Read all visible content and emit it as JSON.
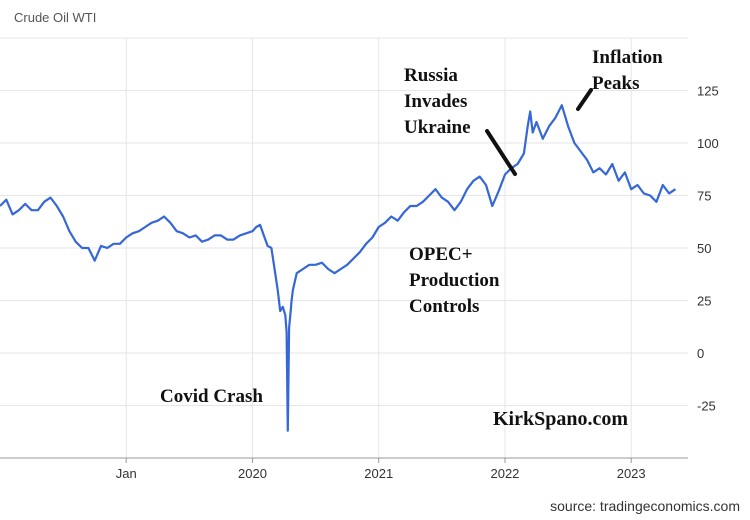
{
  "chart_data": {
    "type": "line",
    "title": "Crude Oil WTI",
    "source": "source: tradingeconomics.com",
    "watermark": "KirkSpano.com",
    "xlim": [
      2018.0,
      2023.45
    ],
    "ylim": [
      -50,
      150
    ],
    "y_ticks": [
      -25,
      0,
      25,
      50,
      75,
      100,
      125
    ],
    "y_tick_labels": [
      "-25",
      "0",
      "25",
      "50",
      "75",
      "100",
      "125"
    ],
    "x_ticks": [
      2019.0,
      2020.0,
      2021.0,
      2022.0,
      2023.0
    ],
    "x_tick_labels": [
      "Jan",
      "2020",
      "2021",
      "2022",
      "2023"
    ],
    "grid": true,
    "line_color": "#3567d6",
    "series": [
      {
        "x": [
          2018.0,
          2018.05,
          2018.1,
          2018.15,
          2018.2,
          2018.25,
          2018.3,
          2018.35,
          2018.4,
          2018.45,
          2018.5,
          2018.55,
          2018.6,
          2018.65,
          2018.7,
          2018.75,
          2018.8,
          2018.85,
          2018.9,
          2018.95,
          2019.0,
          2019.05,
          2019.1,
          2019.15,
          2019.2,
          2019.25,
          2019.3,
          2019.35,
          2019.4,
          2019.45,
          2019.5,
          2019.55,
          2019.6,
          2019.65,
          2019.7,
          2019.75,
          2019.8,
          2019.85,
          2019.9,
          2019.95,
          2020.0,
          2020.03,
          2020.06,
          2020.09,
          2020.12,
          2020.15,
          2020.18,
          2020.2,
          2020.22,
          2020.24,
          2020.26,
          2020.27,
          2020.28,
          2020.29,
          2020.3,
          2020.31,
          2020.32,
          2020.35,
          2020.4,
          2020.45,
          2020.5,
          2020.55,
          2020.6,
          2020.65,
          2020.7,
          2020.75,
          2020.8,
          2020.85,
          2020.9,
          2020.95,
          2021.0,
          2021.05,
          2021.1,
          2021.15,
          2021.2,
          2021.25,
          2021.3,
          2021.35,
          2021.4,
          2021.45,
          2021.5,
          2021.55,
          2021.6,
          2021.65,
          2021.7,
          2021.75,
          2021.8,
          2021.85,
          2021.9,
          2021.95,
          2022.0,
          2022.05,
          2022.1,
          2022.15,
          2022.18,
          2022.2,
          2022.22,
          2022.25,
          2022.3,
          2022.35,
          2022.4,
          2022.45,
          2022.5,
          2022.55,
          2022.6,
          2022.65,
          2022.7,
          2022.75,
          2022.8,
          2022.85,
          2022.9,
          2022.95,
          2023.0,
          2023.05,
          2023.1,
          2023.15,
          2023.2,
          2023.25,
          2023.3,
          2023.35
        ],
        "y": [
          70,
          73,
          66,
          68,
          71,
          68,
          68,
          72,
          74,
          70,
          65,
          58,
          53,
          50,
          50,
          44,
          51,
          50,
          52,
          52,
          55,
          57,
          58,
          60,
          62,
          63,
          65,
          62,
          58,
          57,
          55,
          56,
          53,
          54,
          56,
          56,
          54,
          54,
          56,
          57,
          58,
          60,
          61,
          56,
          51,
          50,
          38,
          30,
          20,
          22,
          18,
          10,
          -37,
          12,
          18,
          25,
          30,
          38,
          40,
          42,
          42,
          43,
          40,
          38,
          40,
          42,
          45,
          48,
          52,
          55,
          60,
          62,
          65,
          63,
          67,
          70,
          70,
          72,
          75,
          78,
          74,
          72,
          68,
          72,
          78,
          82,
          84,
          80,
          70,
          77,
          85,
          88,
          90,
          95,
          108,
          115,
          105,
          110,
          102,
          108,
          112,
          118,
          108,
          100,
          96,
          92,
          86,
          88,
          85,
          90,
          82,
          86,
          78,
          80,
          76,
          75,
          72,
          80,
          76,
          78
        ]
      }
    ],
    "annotations": [
      {
        "text": "Covid Crash"
      },
      {
        "text": "OPEC+\nProduction\nControls"
      },
      {
        "text": "Russia\nInvades\nUkraine"
      },
      {
        "text": "Inflation\nPeaks"
      }
    ]
  }
}
